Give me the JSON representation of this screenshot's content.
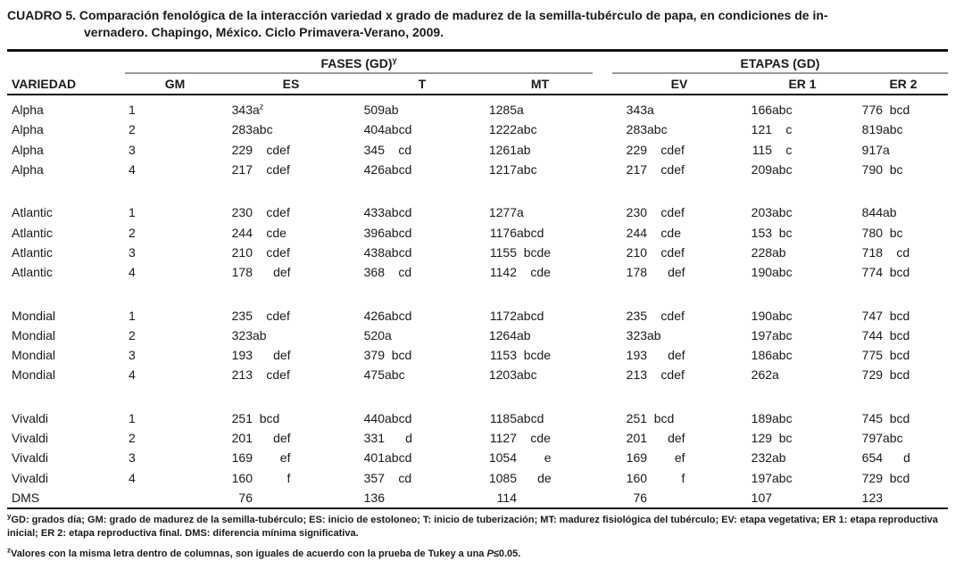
{
  "page": {
    "background": "#ffffff",
    "text_color": "#1a1a1a",
    "heavy_rule_color": "#111111",
    "group_rule_color": "#999999"
  },
  "title": {
    "line1": "CUADRO 5. Comparación fenológica de la interacción variedad x grado de madurez de la semilla-tubérculo de papa, en condiciones de in-",
    "line2": "vernadero. Chapingo, México. Ciclo Primavera-Verano, 2009."
  },
  "table": {
    "header": {
      "groups": [
        {
          "label": "FASES (GD)",
          "sup": "y"
        },
        {
          "label": "ETAPAS (GD)",
          "sup": ""
        }
      ],
      "cols": [
        "VARIEDAD",
        "GM",
        "ES",
        "T",
        "MT",
        "EV",
        "ER 1",
        "ER 2"
      ]
    },
    "groups": [
      {
        "rows": [
          {
            "variety": "Alpha",
            "gm": "1",
            "cells": [
              {
                "n": "343",
                "l": "a",
                "sup": "z"
              },
              {
                "n": "509",
                "l": "ab"
              },
              {
                "n": "1285",
                "l": "a"
              },
              {
                "n": "343",
                "l": "a"
              },
              {
                "n": "166",
                "l": "abc"
              },
              {
                "n": "776",
                "l": "bcd"
              }
            ]
          },
          {
            "variety": "Alpha",
            "gm": "2",
            "cells": [
              {
                "n": "283",
                "l": "abc"
              },
              {
                "n": "404",
                "l": "abcd"
              },
              {
                "n": "1222",
                "l": "abc"
              },
              {
                "n": "283",
                "l": "abc"
              },
              {
                "n": "121",
                "l": "c"
              },
              {
                "n": "819",
                "l": "abc"
              }
            ]
          },
          {
            "variety": "Alpha",
            "gm": "3",
            "cells": [
              {
                "n": "229",
                "l": "cdef"
              },
              {
                "n": "345",
                "l": "cd"
              },
              {
                "n": "1261",
                "l": "ab"
              },
              {
                "n": "229",
                "l": "cdef"
              },
              {
                "n": "115",
                "l": "c"
              },
              {
                "n": "917",
                "l": "a"
              }
            ]
          },
          {
            "variety": "Alpha",
            "gm": "4",
            "cells": [
              {
                "n": "217",
                "l": "cdef"
              },
              {
                "n": "426",
                "l": "abcd"
              },
              {
                "n": "1217",
                "l": "abc"
              },
              {
                "n": "217",
                "l": "cdef"
              },
              {
                "n": "209",
                "l": "abc"
              },
              {
                "n": "790",
                "l": "bc"
              }
            ]
          }
        ]
      },
      {
        "rows": [
          {
            "variety": "Atlantic",
            "gm": "1",
            "cells": [
              {
                "n": "230",
                "l": "cdef"
              },
              {
                "n": "433",
                "l": "abcd"
              },
              {
                "n": "1277",
                "l": "a"
              },
              {
                "n": "230",
                "l": "cdef"
              },
              {
                "n": "203",
                "l": "abc"
              },
              {
                "n": "844",
                "l": "ab"
              }
            ]
          },
          {
            "variety": "Atlantic",
            "gm": "2",
            "cells": [
              {
                "n": "244",
                "l": "cde"
              },
              {
                "n": "396",
                "l": "abcd"
              },
              {
                "n": "1176",
                "l": "abcd"
              },
              {
                "n": "244",
                "l": "cde"
              },
              {
                "n": "153",
                "l": "bc"
              },
              {
                "n": "780",
                "l": "bc"
              }
            ]
          },
          {
            "variety": "Atlantic",
            "gm": "3",
            "cells": [
              {
                "n": "210",
                "l": "cdef"
              },
              {
                "n": "438",
                "l": "abcd"
              },
              {
                "n": "1155",
                "l": "bcde"
              },
              {
                "n": "210",
                "l": "cdef"
              },
              {
                "n": "228",
                "l": "ab"
              },
              {
                "n": "718",
                "l": "cd"
              }
            ]
          },
          {
            "variety": "Atlantic",
            "gm": "4",
            "cells": [
              {
                "n": "178",
                "l": "def"
              },
              {
                "n": "368",
                "l": "cd"
              },
              {
                "n": "1142",
                "l": "cde"
              },
              {
                "n": "178",
                "l": "def"
              },
              {
                "n": "190",
                "l": "abc"
              },
              {
                "n": "774",
                "l": "bcd"
              }
            ]
          }
        ]
      },
      {
        "rows": [
          {
            "variety": "Mondial",
            "gm": "1",
            "cells": [
              {
                "n": "235",
                "l": "cdef"
              },
              {
                "n": "426",
                "l": "abcd"
              },
              {
                "n": "1172",
                "l": "abcd"
              },
              {
                "n": "235",
                "l": "cdef"
              },
              {
                "n": "190",
                "l": "abc"
              },
              {
                "n": "747",
                "l": "bcd"
              }
            ]
          },
          {
            "variety": "Mondial",
            "gm": "2",
            "cells": [
              {
                "n": "323",
                "l": "ab"
              },
              {
                "n": "520",
                "l": "a"
              },
              {
                "n": "1264",
                "l": "ab"
              },
              {
                "n": "323",
                "l": "ab"
              },
              {
                "n": "197",
                "l": "abc"
              },
              {
                "n": "744",
                "l": "bcd"
              }
            ]
          },
          {
            "variety": "Mondial",
            "gm": "3",
            "cells": [
              {
                "n": "193",
                "l": "def"
              },
              {
                "n": "379",
                "l": "bcd"
              },
              {
                "n": "1153",
                "l": "bcde"
              },
              {
                "n": "193",
                "l": "def"
              },
              {
                "n": "186",
                "l": "abc"
              },
              {
                "n": "775",
                "l": "bcd"
              }
            ]
          },
          {
            "variety": "Mondial",
            "gm": "4",
            "cells": [
              {
                "n": "213",
                "l": "cdef"
              },
              {
                "n": "475",
                "l": "abc"
              },
              {
                "n": "1203",
                "l": "abc"
              },
              {
                "n": "213",
                "l": "cdef"
              },
              {
                "n": "262",
                "l": "a"
              },
              {
                "n": "729",
                "l": "bcd"
              }
            ]
          }
        ]
      },
      {
        "rows": [
          {
            "variety": "Vivaldi",
            "gm": "1",
            "cells": [
              {
                "n": "251",
                "l": "bcd"
              },
              {
                "n": "440",
                "l": "abcd"
              },
              {
                "n": "1185",
                "l": "abcd"
              },
              {
                "n": "251",
                "l": "bcd"
              },
              {
                "n": "189",
                "l": "abc"
              },
              {
                "n": "745",
                "l": "bcd"
              }
            ]
          },
          {
            "variety": "Vivaldi",
            "gm": "2",
            "cells": [
              {
                "n": "201",
                "l": "def"
              },
              {
                "n": "331",
                "l": "d"
              },
              {
                "n": "1127",
                "l": "cde"
              },
              {
                "n": "201",
                "l": "def"
              },
              {
                "n": "129",
                "l": "bc"
              },
              {
                "n": "797",
                "l": "abc"
              }
            ]
          },
          {
            "variety": "Vivaldi",
            "gm": "3",
            "cells": [
              {
                "n": "169",
                "l": "ef"
              },
              {
                "n": "401",
                "l": "abcd"
              },
              {
                "n": "1054",
                "l": "e"
              },
              {
                "n": "169",
                "l": "ef"
              },
              {
                "n": "232",
                "l": "ab"
              },
              {
                "n": "654",
                "l": "d"
              }
            ]
          },
          {
            "variety": "Vivaldi",
            "gm": "4",
            "cells": [
              {
                "n": "160",
                "l": "f"
              },
              {
                "n": "357",
                "l": "cd"
              },
              {
                "n": "1085",
                "l": "de"
              },
              {
                "n": "160",
                "l": "f"
              },
              {
                "n": "197",
                "l": "abc"
              },
              {
                "n": "729",
                "l": "bcd"
              }
            ]
          }
        ]
      }
    ],
    "dms": {
      "label": "DMS",
      "values": [
        "76",
        "136",
        "114",
        "76",
        "107",
        "123"
      ]
    }
  },
  "footnotes": [
    {
      "marker": "y",
      "text": "GD: grados día; GM: grado de madurez de la semilla-tubérculo; ES: inicio de estoloneo; T: inicio de tuberización; MT: madurez fisiológica del tubérculo; EV: etapa vegetativa; ER 1: etapa reproductiva inicial; ER 2: etapa reproductiva final. DMS: diferencia mínima significativa."
    },
    {
      "marker": "z",
      "text": "Valores con la misma letra dentro de columnas, son iguales de acuerdo con la prueba de Tukey a una ",
      "italic": "P",
      "suffix": "≤0.05."
    }
  ]
}
